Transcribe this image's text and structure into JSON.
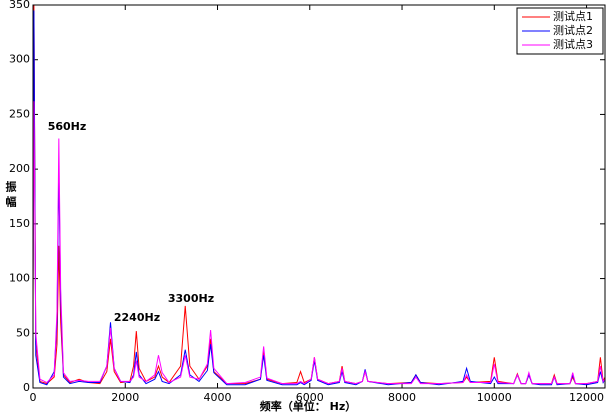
{
  "chart_data": {
    "type": "line",
    "x_label": "频率（单位： Hz）",
    "y_label": "振幅",
    "annotations": [
      "560Hz",
      "2240Hz",
      "3300Hz"
    ],
    "x": [
      0,
      20,
      60,
      150,
      300,
      460,
      520,
      560,
      600,
      660,
      800,
      1000,
      1200,
      1450,
      1600,
      1680,
      1760,
      1900,
      2100,
      2180,
      2240,
      2300,
      2450,
      2640,
      2720,
      2800,
      2950,
      3200,
      3300,
      3400,
      3600,
      3780,
      3850,
      3920,
      4200,
      4600,
      4930,
      5000,
      5070,
      5400,
      5720,
      5800,
      5880,
      6030,
      6100,
      6170,
      6400,
      6640,
      6700,
      6760,
      7000,
      7140,
      7200,
      7260,
      7700,
      8200,
      8300,
      8400,
      8800,
      9320,
      9400,
      9480,
      9920,
      10000,
      10080,
      10420,
      10500,
      10580,
      10680,
      10750,
      10820,
      11000,
      11240,
      11300,
      11360,
      11640,
      11700,
      11760,
      12000,
      12240,
      12300,
      12360,
      12400
    ],
    "series": [
      {
        "name": "测试点1",
        "color": "#ff0000",
        "values": [
          60,
          350,
          40,
          6,
          4,
          10,
          40,
          130,
          60,
          12,
          5,
          8,
          5,
          4,
          15,
          45,
          15,
          5,
          6,
          20,
          52,
          18,
          6,
          10,
          20,
          10,
          5,
          20,
          75,
          20,
          8,
          20,
          45,
          15,
          4,
          4,
          8,
          35,
          8,
          4,
          5,
          15,
          5,
          8,
          28,
          8,
          4,
          6,
          20,
          6,
          4,
          6,
          15,
          6,
          4,
          5,
          12,
          5,
          4,
          5,
          10,
          5,
          6,
          28,
          6,
          4,
          13,
          4,
          4,
          12,
          4,
          4,
          4,
          12,
          4,
          4,
          10,
          4,
          4,
          6,
          28,
          6,
          10
        ]
      },
      {
        "name": "测试点2",
        "color": "#0000ff",
        "values": [
          90,
          345,
          30,
          5,
          3,
          15,
          60,
          200,
          80,
          10,
          4,
          6,
          5,
          5,
          20,
          60,
          18,
          6,
          5,
          12,
          33,
          12,
          4,
          8,
          15,
          6,
          4,
          12,
          35,
          12,
          6,
          16,
          40,
          14,
          3,
          3,
          8,
          30,
          7,
          3,
          3,
          5,
          3,
          7,
          25,
          7,
          3,
          5,
          15,
          5,
          3,
          6,
          17,
          6,
          3,
          5,
          12,
          5,
          3,
          6,
          18,
          6,
          4,
          10,
          4,
          4,
          12,
          4,
          4,
          12,
          4,
          3,
          3,
          10,
          3,
          4,
          12,
          4,
          3,
          5,
          15,
          5,
          8
        ]
      },
      {
        "name": "测试点3",
        "color": "#ff00ff",
        "values": [
          100,
          262,
          50,
          8,
          5,
          12,
          70,
          228,
          90,
          14,
          6,
          7,
          6,
          6,
          20,
          55,
          18,
          6,
          6,
          10,
          25,
          10,
          6,
          12,
          30,
          14,
          5,
          10,
          30,
          10,
          8,
          22,
          53,
          18,
          4,
          5,
          10,
          38,
          9,
          4,
          4,
          6,
          4,
          8,
          28,
          8,
          4,
          6,
          18,
          6,
          4,
          6,
          15,
          6,
          4,
          4,
          10,
          4,
          4,
          5,
          12,
          5,
          5,
          22,
          5,
          4,
          12,
          4,
          4,
          14,
          4,
          4,
          4,
          10,
          4,
          4,
          14,
          4,
          4,
          6,
          20,
          6,
          8
        ]
      }
    ],
    "xlim": [
      0,
      12400
    ],
    "ylim": [
      0,
      350
    ],
    "xticks": [
      0,
      2000,
      4000,
      6000,
      8000,
      10000,
      12000
    ],
    "yticks": [
      0,
      50,
      100,
      150,
      200,
      250,
      300,
      350
    ],
    "legend": "upper-right"
  }
}
